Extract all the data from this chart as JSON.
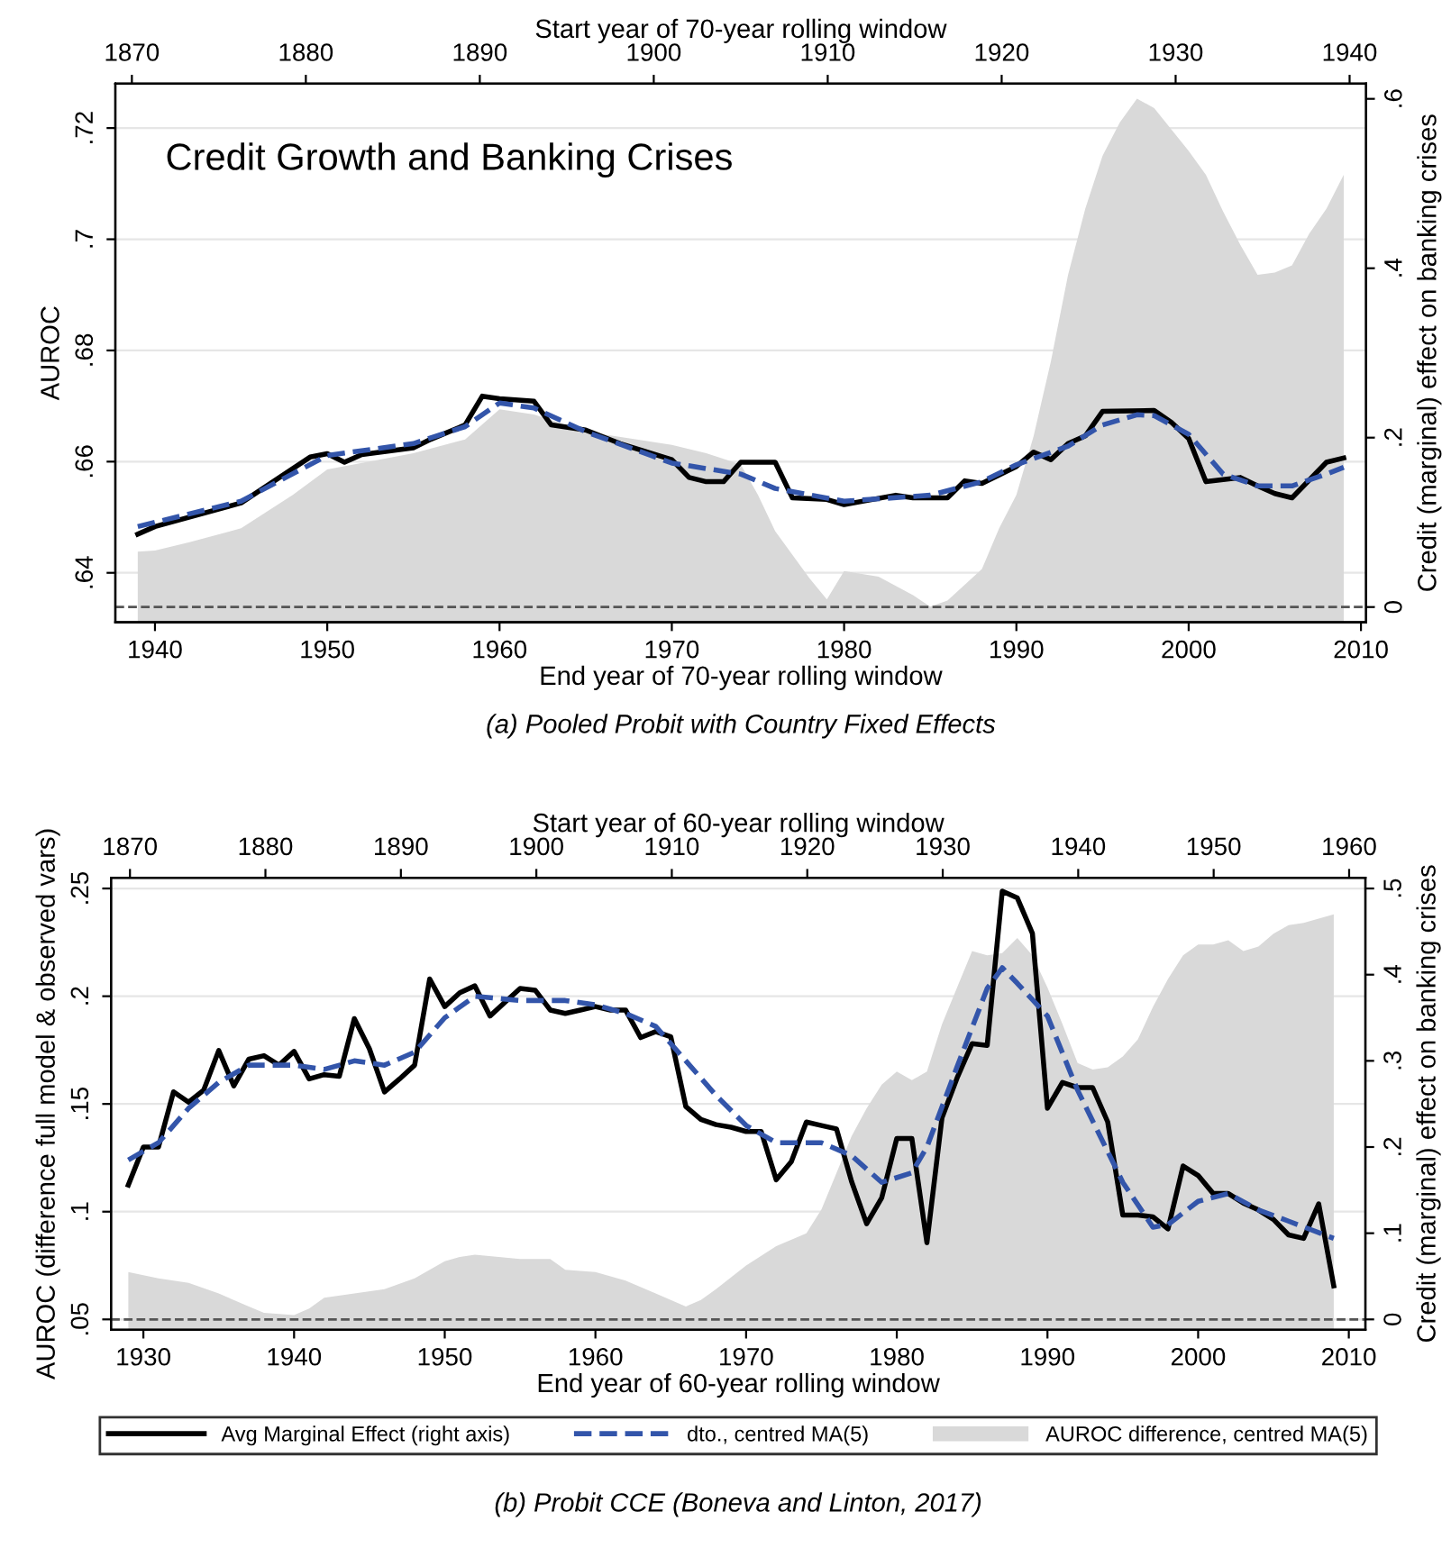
{
  "chart_data": [
    {
      "type": "line",
      "title": "Credit Growth and Banking Crises",
      "xlabel": "End year of 70-year rolling window",
      "x2label": "Start year of 70-year rolling window",
      "ylabel": "AUROC",
      "y2label": "Credit (marginal) effect on banking crises",
      "xlim": [
        1937.7,
        2010.3
      ],
      "xticks": [
        1940,
        1950,
        1960,
        1970,
        1980,
        1990,
        2000,
        2010
      ],
      "x2lim": [
        1869.05,
        1940.95
      ],
      "x2ticks": [
        1870,
        1880,
        1890,
        1900,
        1910,
        1920,
        1930,
        1940
      ],
      "ylim": [
        0.6311,
        0.728
      ],
      "yticks": [
        {
          "value": 0.64,
          "label": ".64"
        },
        {
          "value": 0.66,
          "label": ".66"
        },
        {
          "value": 0.68,
          "label": ".68"
        },
        {
          "value": 0.7,
          "label": ".7"
        },
        {
          "value": 0.72,
          "label": ".72"
        }
      ],
      "y2lim": [
        -0.018,
        0.618
      ],
      "y2ticks": [
        0,
        {
          "value": 0.2,
          "label": ".2"
        },
        {
          "value": 0.4,
          "label": ".4"
        },
        {
          "value": 0.6,
          "label": ".6"
        }
      ],
      "grid": "y",
      "legend": false,
      "ref_lines": [
        {
          "axis": "y2",
          "value": 0,
          "color": "#555555",
          "line_style": "dashed"
        }
      ],
      "annotations": [
        "(a) Pooled Probit with Country Fixed Effects"
      ],
      "series": [
        {
          "axis": "y2",
          "color": "#000000",
          "line_style": "solid",
          "x": [
            1939,
            1940,
            1945,
            1949,
            1950,
            1951,
            1952,
            1955,
            1956,
            1958,
            1959,
            1960,
            1962,
            1963,
            1965,
            1967,
            1970,
            1971,
            1972,
            1973,
            1974,
            1976,
            1977,
            1979,
            1980,
            1983,
            1984,
            1986,
            1987,
            1988,
            1990,
            1991,
            1992,
            1993,
            1994,
            1995,
            1998,
            1999,
            2000,
            2001,
            2003,
            2004,
            2005,
            2006,
            2008,
            2009
          ],
          "values": [
            0.086,
            0.095,
            0.123,
            0.177,
            0.181,
            0.171,
            0.18,
            0.188,
            0.198,
            0.215,
            0.249,
            0.246,
            0.243,
            0.215,
            0.209,
            0.193,
            0.174,
            0.153,
            0.148,
            0.148,
            0.171,
            0.171,
            0.129,
            0.127,
            0.121,
            0.132,
            0.129,
            0.129,
            0.149,
            0.146,
            0.166,
            0.183,
            0.174,
            0.193,
            0.202,
            0.231,
            0.232,
            0.218,
            0.199,
            0.148,
            0.153,
            0.143,
            0.134,
            0.129,
            0.171,
            0.176
          ]
        },
        {
          "axis": "y2",
          "color": "#3355aa",
          "line_style": "dashed",
          "x": [
            1939,
            1945,
            1950,
            1955,
            1958,
            1960,
            1962,
            1965,
            1970,
            1974,
            1976,
            1980,
            1985,
            1988,
            1990,
            1993,
            1995,
            1997,
            1998,
            2000,
            2002,
            2004,
            2006,
            2008,
            2009
          ],
          "values": [
            0.095,
            0.125,
            0.179,
            0.193,
            0.213,
            0.241,
            0.235,
            0.207,
            0.17,
            0.157,
            0.14,
            0.125,
            0.132,
            0.148,
            0.168,
            0.19,
            0.215,
            0.227,
            0.226,
            0.204,
            0.157,
            0.143,
            0.143,
            0.157,
            0.165
          ]
        },
        {
          "type": "area",
          "color": "#d9d9d9",
          "x": [
            1939,
            1940,
            1942,
            1945,
            1948,
            1950,
            1955,
            1958,
            1960,
            1962,
            1965,
            1970,
            1972,
            1974,
            1975,
            1976,
            1978,
            1979,
            1980,
            1982,
            1984,
            1985,
            1986,
            1988,
            1989,
            1990,
            1991,
            1992,
            1993,
            1994,
            1995,
            1996,
            1997,
            1998,
            2000,
            2001,
            2002,
            2003,
            2004,
            2005,
            2006,
            2007,
            2008,
            2009
          ],
          "values": [
            0.6438,
            0.644,
            0.6455,
            0.648,
            0.654,
            0.6586,
            0.6615,
            0.664,
            0.6694,
            0.6685,
            0.6654,
            0.663,
            0.6615,
            0.6595,
            0.654,
            0.6475,
            0.639,
            0.6352,
            0.6403,
            0.6393,
            0.636,
            0.6339,
            0.635,
            0.6407,
            0.648,
            0.654,
            0.6646,
            0.678,
            0.6936,
            0.7055,
            0.715,
            0.721,
            0.7253,
            0.7236,
            0.7159,
            0.7116,
            0.705,
            0.699,
            0.6936,
            0.694,
            0.6953,
            0.701,
            0.7055,
            0.7116
          ]
        }
      ]
    },
    {
      "type": "line",
      "xlabel": "End year of 60-year rolling window",
      "x2label": "Start year of 60-year rolling window",
      "ylabel": "AUROC (difference full model & observed vars)",
      "y2label": "Credit (marginal) effect on banking crises",
      "xlim": [
        1927.85,
        2011.1
      ],
      "xticks": [
        1930,
        1940,
        1950,
        1960,
        1970,
        1980,
        1990,
        2000,
        2010
      ],
      "x2lim": [
        1868.6,
        1961.2
      ],
      "x2ticks": [
        1870,
        1880,
        1890,
        1900,
        1910,
        1920,
        1930,
        1940,
        1950,
        1960
      ],
      "ylim": [
        0.0452,
        0.255
      ],
      "yticks": [
        {
          "value": 0.05,
          "label": ".05"
        },
        {
          "value": 0.1,
          "label": ".1"
        },
        {
          "value": 0.15,
          "label": ".15"
        },
        {
          "value": 0.2,
          "label": ".2"
        },
        {
          "value": 0.25,
          "label": ".25"
        }
      ],
      "y2lim": [
        -0.012,
        0.5125
      ],
      "y2ticks": [
        0,
        {
          "value": 0.1,
          "label": ".1"
        },
        {
          "value": 0.2,
          "label": ".2"
        },
        {
          "value": 0.3,
          "label": ".3"
        },
        {
          "value": 0.4,
          "label": ".4"
        },
        {
          "value": 0.5,
          "label": ".5"
        }
      ],
      "grid": "y",
      "legend": "bottom",
      "ref_lines": [
        {
          "axis": "y2",
          "value": 0,
          "color": "#555555",
          "line_style": "dashed"
        }
      ],
      "annotations": [
        "(b) Probit CCE (Boneva and Linton, 2017)"
      ],
      "series": [
        {
          "name": "Avg Marginal Effect (right axis)",
          "axis": "y2",
          "color": "#000000",
          "line_style": "solid",
          "x": [
            1929,
            1930,
            1931,
            1932,
            1933,
            1934,
            1935,
            1936,
            1937,
            1938,
            1939,
            1940,
            1941,
            1942,
            1943,
            1944,
            1945,
            1946,
            1947,
            1948,
            1949,
            1950,
            1951,
            1952,
            1953,
            1954,
            1955,
            1956,
            1957,
            1958,
            1959,
            1960,
            1961,
            1962,
            1963,
            1964,
            1965,
            1966,
            1967,
            1968,
            1969,
            1970,
            1971,
            1972,
            1973,
            1974,
            1975,
            1976,
            1977,
            1978,
            1979,
            1980,
            1981,
            1982,
            1983,
            1984,
            1985,
            1986,
            1987,
            1988,
            1989,
            1990,
            1991,
            1992,
            1993,
            1994,
            1995,
            1996,
            1997,
            1998,
            1999,
            2000,
            2001,
            2002,
            2003,
            2004,
            2005,
            2006,
            2007,
            2008,
            2009
          ],
          "values": [
            0.156,
            0.2,
            0.2,
            0.264,
            0.252,
            0.266,
            0.312,
            0.271,
            0.302,
            0.306,
            0.295,
            0.311,
            0.279,
            0.284,
            0.282,
            0.349,
            0.314,
            0.264,
            0.279,
            0.295,
            0.395,
            0.363,
            0.379,
            0.387,
            0.352,
            0.368,
            0.384,
            0.382,
            0.359,
            0.355,
            0.359,
            0.363,
            0.359,
            0.359,
            0.327,
            0.334,
            0.328,
            0.247,
            0.232,
            0.226,
            0.223,
            0.218,
            0.218,
            0.162,
            0.183,
            0.229,
            0.225,
            0.221,
            0.16,
            0.111,
            0.141,
            0.21,
            0.21,
            0.089,
            0.234,
            0.28,
            0.32,
            0.318,
            0.497,
            0.489,
            0.448,
            0.245,
            0.275,
            0.269,
            0.269,
            0.229,
            0.121,
            0.121,
            0.119,
            0.105,
            0.178,
            0.167,
            0.146,
            0.146,
            0.135,
            0.127,
            0.116,
            0.098,
            0.094,
            0.134,
            0.039
          ]
        },
        {
          "name": "dto., centred MA(5)",
          "axis": "y2",
          "color": "#3355aa",
          "line_style": "dashed",
          "x": [
            1929,
            1931,
            1933,
            1935,
            1937,
            1940,
            1942,
            1944,
            1946,
            1948,
            1950,
            1952,
            1955,
            1958,
            1960,
            1962,
            1964,
            1966,
            1968,
            1970,
            1972,
            1975,
            1977,
            1979,
            1981,
            1982,
            1984,
            1986,
            1987,
            1988,
            1990,
            1992,
            1995,
            1997,
            1998,
            2000,
            2002,
            2004,
            2006,
            2009
          ],
          "values": [
            0.185,
            0.205,
            0.245,
            0.275,
            0.295,
            0.295,
            0.29,
            0.3,
            0.295,
            0.31,
            0.35,
            0.375,
            0.37,
            0.37,
            0.365,
            0.355,
            0.34,
            0.3,
            0.26,
            0.225,
            0.205,
            0.205,
            0.19,
            0.159,
            0.17,
            0.2,
            0.293,
            0.384,
            0.408,
            0.39,
            0.352,
            0.266,
            0.159,
            0.107,
            0.11,
            0.137,
            0.146,
            0.127,
            0.114,
            0.094
          ]
        },
        {
          "type": "area",
          "name": "AUROC difference, centred MA(5)",
          "color": "#d9d9d9",
          "x": [
            1929,
            1931,
            1933,
            1935,
            1937,
            1938,
            1940,
            1941,
            1942,
            1944,
            1946,
            1948,
            1950,
            1951,
            1952,
            1955,
            1957,
            1958,
            1960,
            1962,
            1964,
            1965,
            1966,
            1967,
            1968,
            1970,
            1972,
            1974,
            1975,
            1976,
            1977,
            1978,
            1979,
            1980,
            1981,
            1982,
            1983,
            1984,
            1985,
            1986,
            1987,
            1988,
            1989,
            1990,
            1991,
            1992,
            1993,
            1994,
            1995,
            1996,
            1997,
            1998,
            1999,
            2000,
            2001,
            2002,
            2003,
            2004,
            2005,
            2006,
            2007,
            2008,
            2009
          ],
          "values": [
            0.072,
            0.069,
            0.067,
            0.062,
            0.056,
            0.053,
            0.052,
            0.055,
            0.06,
            0.062,
            0.064,
            0.069,
            0.077,
            0.079,
            0.08,
            0.078,
            0.078,
            0.073,
            0.072,
            0.068,
            0.062,
            0.059,
            0.056,
            0.059,
            0.064,
            0.075,
            0.084,
            0.09,
            0.101,
            0.118,
            0.135,
            0.148,
            0.159,
            0.165,
            0.161,
            0.165,
            0.187,
            0.204,
            0.221,
            0.219,
            0.22,
            0.227,
            0.219,
            0.204,
            0.187,
            0.169,
            0.166,
            0.167,
            0.172,
            0.18,
            0.195,
            0.208,
            0.219,
            0.224,
            0.224,
            0.226,
            0.221,
            0.223,
            0.229,
            0.233,
            0.234,
            0.236,
            0.238
          ]
        }
      ]
    }
  ]
}
